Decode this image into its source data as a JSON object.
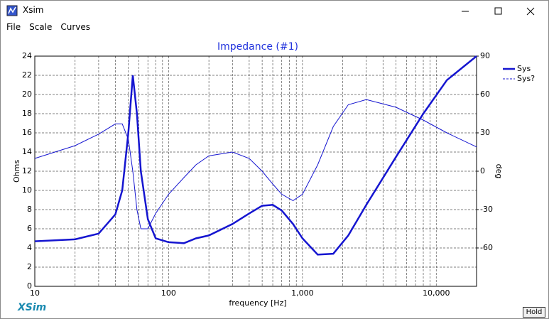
{
  "window": {
    "title": "Xsim",
    "menu": [
      "File",
      "Scale",
      "Curves"
    ],
    "logo": "XSim",
    "button": "Hold"
  },
  "chart_data": {
    "type": "line",
    "title": "Impedance (#1)",
    "x_label": "frequency [Hz]",
    "y_label": "Ohms",
    "y2_label": "deg",
    "x_scale": "log",
    "xlim": [
      10,
      20000
    ],
    "xticks": [
      10,
      100,
      {
        "value": 1000,
        "label": "1,000"
      },
      {
        "value": 10000,
        "label": "10,000"
      }
    ],
    "xminorticks": [
      20,
      30,
      40,
      50,
      60,
      70,
      80,
      90,
      200,
      300,
      400,
      500,
      600,
      700,
      800,
      900,
      2000,
      3000,
      4000,
      5000,
      6000,
      7000,
      8000,
      9000
    ],
    "ylim": [
      0,
      24
    ],
    "yticks": [
      0,
      2,
      4,
      6,
      8,
      10,
      12,
      14,
      16,
      18,
      20,
      22,
      24
    ],
    "y2lim": [
      -90,
      90
    ],
    "y2ticks": [
      -60,
      -30,
      0,
      30,
      60,
      90
    ],
    "grid": true,
    "legend": "right",
    "x": [
      10,
      20,
      30,
      40,
      45,
      50,
      54,
      58,
      62,
      70,
      80,
      100,
      130,
      160,
      200,
      300,
      400,
      500,
      600,
      700,
      850,
      1000,
      1300,
      1700,
      2200,
      3000,
      5000,
      8000,
      12000,
      20000
    ],
    "series": [
      {
        "name": "Sys",
        "color": "#1515d0",
        "line_width": 2.5,
        "legend_style": "solid",
        "values": [
          4.7,
          4.9,
          5.5,
          7.5,
          10,
          16,
          22,
          18,
          12,
          7,
          5,
          4.6,
          4.5,
          5.0,
          5.3,
          6.5,
          7.6,
          8.4,
          8.5,
          7.9,
          6.5,
          5.0,
          3.3,
          3.4,
          5.3,
          8.5,
          13.5,
          18,
          21.5,
          24
        ]
      },
      {
        "name": "Sys?",
        "color": "#1515d0",
        "line_width": 1,
        "legend_style": "dashed",
        "axis": "y2",
        "values": [
          10,
          20,
          29,
          37,
          37,
          25,
          0,
          -30,
          -45,
          -45,
          -33,
          -18,
          -5,
          5,
          12,
          15,
          10,
          0,
          -10,
          -18,
          -23,
          -18,
          5,
          35,
          52,
          56,
          50,
          40,
          30,
          19
        ]
      }
    ]
  }
}
